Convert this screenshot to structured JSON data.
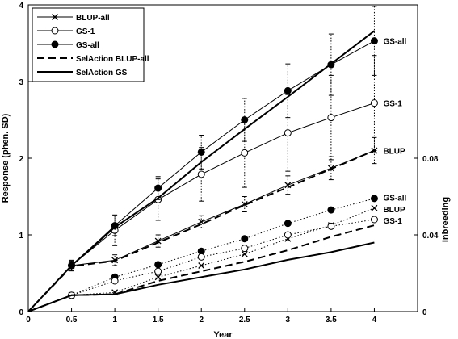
{
  "chart_data": {
    "type": "line",
    "xlabel": "Year",
    "ylabel": "Response (phen. SD)",
    "y2label": "Inbreeding",
    "xlim": [
      0,
      4.5
    ],
    "ylim": [
      0,
      4
    ],
    "y2lim": [
      0,
      0.16
    ],
    "xticks": [
      "0",
      "0.5",
      "1",
      "1.5",
      "2",
      "2.5",
      "3",
      "3.5",
      "4"
    ],
    "yticks": [
      "0",
      "1",
      "2",
      "3",
      "4"
    ],
    "y2ticks": [
      "0",
      "0.04",
      "0.08"
    ],
    "x": [
      0,
      0.5,
      1,
      1.5,
      2,
      2.5,
      3,
      3.5,
      4
    ],
    "legend_position": "top-left",
    "series": [
      {
        "name": "BLUP-all",
        "axis": "left",
        "style": "solid-thin",
        "marker": "x",
        "values": [
          0,
          0.6,
          0.67,
          0.92,
          1.17,
          1.4,
          1.65,
          1.87,
          2.1
        ],
        "errors": [
          0,
          0.06,
          0.07,
          0.08,
          0.08,
          0.1,
          0.12,
          0.15,
          0.17
        ]
      },
      {
        "name": "GS-1",
        "axis": "left",
        "style": "solid-thin",
        "marker": "open-circle",
        "values": [
          0,
          0.6,
          1.06,
          1.46,
          1.79,
          2.07,
          2.33,
          2.53,
          2.72
        ],
        "errors": [
          0,
          0.06,
          0.2,
          0.27,
          0.35,
          0.45,
          0.5,
          0.55,
          0.62
        ]
      },
      {
        "name": "GS-all",
        "axis": "left",
        "style": "solid-thin",
        "marker": "filled-circle",
        "values": [
          0,
          0.6,
          1.12,
          1.61,
          2.08,
          2.5,
          2.88,
          3.22,
          3.53
        ],
        "errors": [
          0,
          0.07,
          0.13,
          0.15,
          0.22,
          0.28,
          0.35,
          0.4,
          0.45
        ]
      },
      {
        "name": "SelAction BLUP-all",
        "axis": "left",
        "style": "dashed",
        "values": [
          0,
          0.59,
          0.66,
          0.9,
          1.14,
          1.39,
          1.62,
          1.86,
          2.1
        ]
      },
      {
        "name": "SelAction GS",
        "axis": "left",
        "style": "solid-thick",
        "values": [
          0,
          0.6,
          1.1,
          1.48,
          1.95,
          2.38,
          2.8,
          3.23,
          3.66
        ]
      },
      {
        "name": "GS-all inbreeding",
        "axis": "right",
        "style": "dotted",
        "marker": "filled-circle",
        "values": [
          0,
          0.0085,
          0.018,
          0.0245,
          0.0315,
          0.038,
          0.046,
          0.053,
          0.059
        ]
      },
      {
        "name": "BLUP inbreeding",
        "axis": "right",
        "style": "dotted",
        "marker": "x",
        "values": [
          0,
          0.0085,
          0.01,
          0.018,
          0.024,
          0.03,
          0.038,
          0.045,
          0.054
        ]
      },
      {
        "name": "GS-1 inbreeding",
        "axis": "right",
        "style": "dotted",
        "marker": "open-circle",
        "values": [
          0,
          0.0085,
          0.016,
          0.021,
          0.0285,
          0.033,
          0.04,
          0.0445,
          0.048
        ]
      },
      {
        "name": "SelAction BLUP inbreeding",
        "axis": "right",
        "style": "dashed",
        "values": [
          0,
          0.0085,
          0.009,
          0.016,
          0.021,
          0.026,
          0.032,
          0.039,
          0.045
        ]
      },
      {
        "name": "SelAction GS inbreeding",
        "axis": "right",
        "style": "solid-thick",
        "values": [
          0,
          0.0085,
          0.009,
          0.014,
          0.018,
          0.022,
          0.027,
          0.031,
          0.036
        ]
      }
    ],
    "end_labels": [
      {
        "text": "GS-all",
        "x": 4,
        "y": 3.53,
        "axis": "left"
      },
      {
        "text": "GS-1",
        "x": 4,
        "y": 2.72,
        "axis": "left"
      },
      {
        "text": "BLUP",
        "x": 4,
        "y": 2.1,
        "axis": "left"
      },
      {
        "text": "GS-all",
        "x": 4,
        "y": 0.0595,
        "axis": "right"
      },
      {
        "text": "BLUP",
        "x": 4,
        "y": 0.0535,
        "axis": "right"
      },
      {
        "text": "GS-1",
        "x": 4,
        "y": 0.0475,
        "axis": "right"
      }
    ],
    "legend": [
      {
        "label": "BLUP-all",
        "style": "solid-thin",
        "marker": "x"
      },
      {
        "label": "GS-1",
        "style": "solid-thin",
        "marker": "open-circle"
      },
      {
        "label": "GS-all",
        "style": "solid-thin",
        "marker": "filled-circle"
      },
      {
        "label": "SelAction BLUP-all",
        "style": "dashed"
      },
      {
        "label": "SelAction GS",
        "style": "solid-thick"
      }
    ]
  }
}
